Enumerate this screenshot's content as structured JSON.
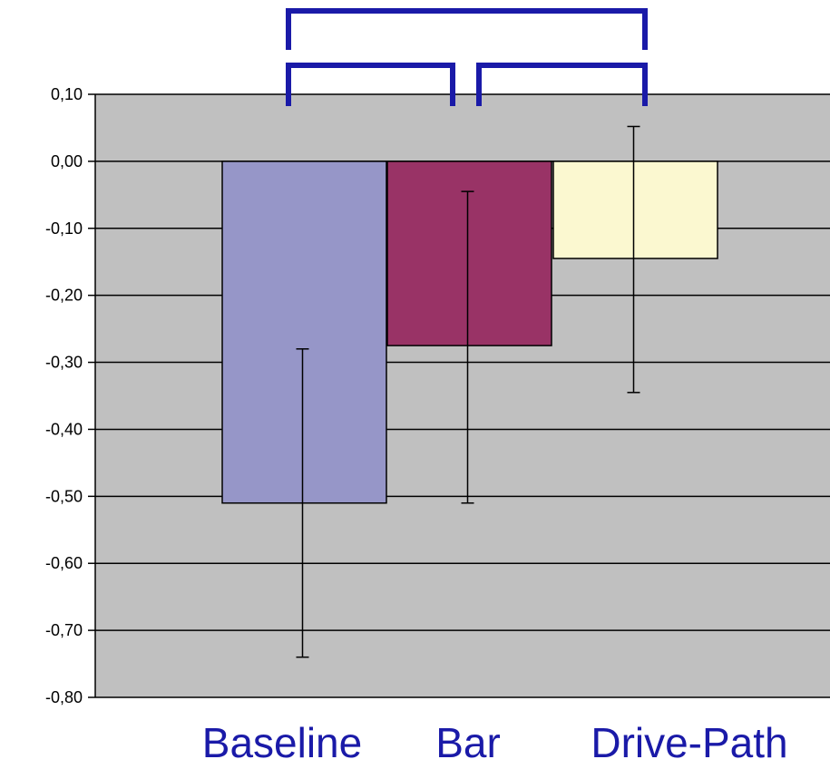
{
  "chart_data": {
    "type": "bar",
    "categories": [
      "Baseline",
      "Bar",
      "Drive-Path"
    ],
    "values": [
      -0.51,
      -0.275,
      -0.145
    ],
    "error_bars": [
      {
        "low": -0.74,
        "high": -0.28
      },
      {
        "low": -0.51,
        "high": -0.045
      },
      {
        "low": -0.345,
        "high": 0.052
      }
    ],
    "ylim": [
      -0.8,
      0.1
    ],
    "y_ticks": [
      0.1,
      0.0,
      -0.1,
      -0.2,
      -0.3,
      -0.4,
      -0.5,
      -0.6,
      -0.7,
      -0.8
    ],
    "y_tick_labels": [
      "0,10",
      "0,00",
      "-0,10",
      "-0,20",
      "-0,30",
      "-0,40",
      "-0,50",
      "-0,60",
      "-0,70",
      "-0,80"
    ],
    "grid": true,
    "significance_brackets": [
      {
        "from": "Baseline",
        "to": "Drive-Path",
        "level": "upper"
      },
      {
        "from": "Baseline",
        "to": "Bar",
        "level": "lower"
      },
      {
        "from": "Bar",
        "to": "Drive-Path",
        "level": "lower"
      }
    ],
    "colors": {
      "plot_background": "#c0c0c0",
      "bars": [
        "#9696c8",
        "#993366",
        "#fbf8d0"
      ],
      "bracket": "#1a1aa8",
      "category_label": "#1a1aa8"
    },
    "title": "",
    "xlabel": "",
    "ylabel": ""
  }
}
